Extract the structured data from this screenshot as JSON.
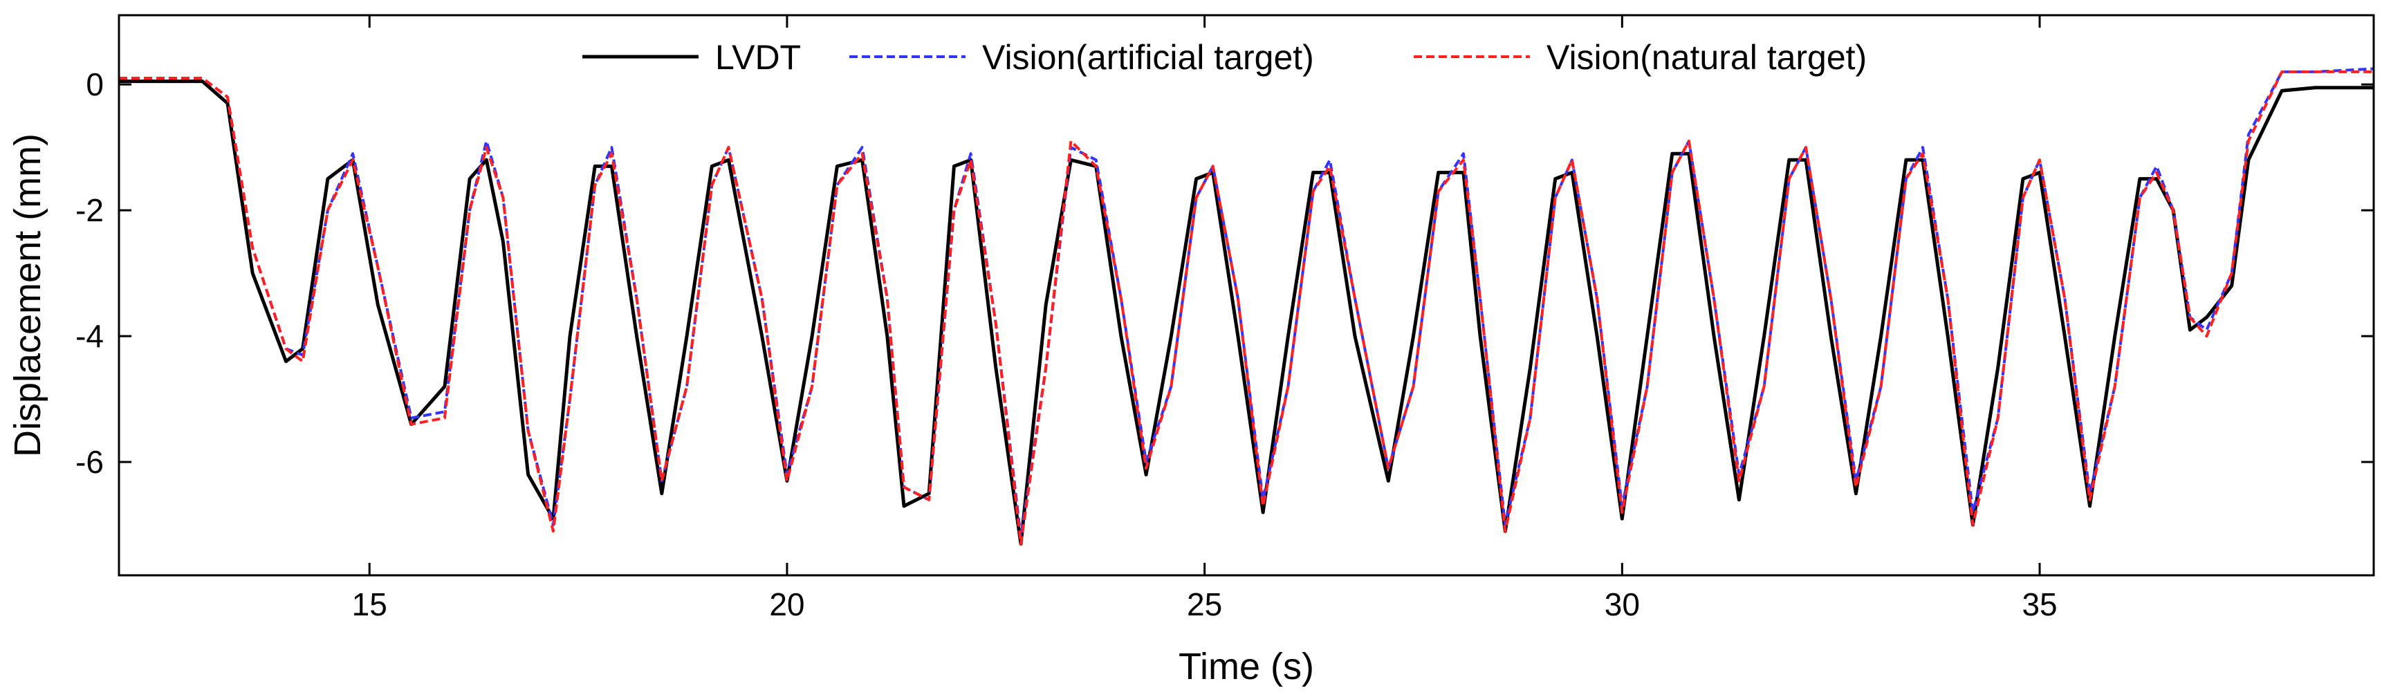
{
  "chart_data": {
    "type": "line",
    "xlabel": "Time (s)",
    "ylabel": "Displacement (mm)",
    "xlim": [
      12,
      39
    ],
    "ylim": [
      -7.8,
      1.1
    ],
    "xticks": [
      15,
      20,
      25,
      30,
      35
    ],
    "yticks": [
      0,
      -2,
      -4,
      -6
    ],
    "grid": false,
    "legend_position": "top",
    "series": [
      {
        "name": "LVDT",
        "color": "#000000",
        "style": "solid",
        "x": [
          12.0,
          13.0,
          13.3,
          13.6,
          14.0,
          14.2,
          14.5,
          14.8,
          15.1,
          15.5,
          15.9,
          16.2,
          16.4,
          16.6,
          16.9,
          17.2,
          17.4,
          17.7,
          17.9,
          18.2,
          18.5,
          18.8,
          19.1,
          19.3,
          19.7,
          20.0,
          20.3,
          20.6,
          20.9,
          21.2,
          21.4,
          21.7,
          22.0,
          22.2,
          22.5,
          22.8,
          23.1,
          23.4,
          23.7,
          24.0,
          24.3,
          24.6,
          24.9,
          25.1,
          25.4,
          25.7,
          26.0,
          26.3,
          26.5,
          26.8,
          27.2,
          27.5,
          27.8,
          28.1,
          28.3,
          28.6,
          28.9,
          29.2,
          29.4,
          29.7,
          30.0,
          30.3,
          30.6,
          30.8,
          31.1,
          31.4,
          31.7,
          32.0,
          32.2,
          32.5,
          32.8,
          33.1,
          33.4,
          33.6,
          33.9,
          34.2,
          34.5,
          34.8,
          35.0,
          35.3,
          35.6,
          35.9,
          36.2,
          36.4,
          36.6,
          36.8,
          37.0,
          37.3,
          37.5,
          37.9,
          38.3,
          39.0
        ],
        "y": [
          0.05,
          0.05,
          -0.3,
          -3.0,
          -4.4,
          -4.2,
          -1.5,
          -1.2,
          -3.5,
          -5.4,
          -4.8,
          -1.5,
          -1.2,
          -2.5,
          -6.2,
          -6.9,
          -4.0,
          -1.3,
          -1.3,
          -4.0,
          -6.5,
          -4.0,
          -1.3,
          -1.2,
          -4.0,
          -6.3,
          -4.0,
          -1.3,
          -1.2,
          -4.0,
          -6.7,
          -6.5,
          -1.3,
          -1.2,
          -4.5,
          -7.3,
          -3.5,
          -1.2,
          -1.3,
          -4.0,
          -6.2,
          -4.0,
          -1.5,
          -1.4,
          -4.0,
          -6.8,
          -4.0,
          -1.4,
          -1.4,
          -4.0,
          -6.3,
          -4.0,
          -1.4,
          -1.4,
          -4.0,
          -7.1,
          -4.5,
          -1.5,
          -1.4,
          -4.0,
          -6.9,
          -4.0,
          -1.1,
          -1.1,
          -4.0,
          -6.6,
          -4.0,
          -1.2,
          -1.2,
          -4.0,
          -6.5,
          -4.0,
          -1.2,
          -1.2,
          -4.0,
          -7.0,
          -4.5,
          -1.5,
          -1.4,
          -4.0,
          -6.7,
          -4.0,
          -1.5,
          -1.5,
          -2.0,
          -3.9,
          -3.7,
          -3.2,
          -1.2,
          -0.1,
          -0.05,
          -0.05
        ]
      },
      {
        "name": "Vision(artificial target)",
        "color": "#3333ff",
        "style": "dashed",
        "x": [
          12.0,
          13.0,
          13.3,
          13.6,
          14.0,
          14.2,
          14.5,
          14.8,
          15.1,
          15.5,
          15.9,
          16.2,
          16.4,
          16.6,
          16.9,
          17.2,
          17.4,
          17.7,
          17.9,
          18.2,
          18.5,
          18.8,
          19.1,
          19.3,
          19.7,
          20.0,
          20.3,
          20.6,
          20.9,
          21.2,
          21.4,
          21.7,
          22.0,
          22.2,
          22.5,
          22.8,
          23.1,
          23.4,
          23.7,
          24.0,
          24.3,
          24.6,
          24.9,
          25.1,
          25.4,
          25.7,
          26.0,
          26.3,
          26.5,
          26.8,
          27.2,
          27.5,
          27.8,
          28.1,
          28.3,
          28.6,
          28.9,
          29.2,
          29.4,
          29.7,
          30.0,
          30.3,
          30.6,
          30.8,
          31.1,
          31.4,
          31.7,
          32.0,
          32.2,
          32.5,
          32.8,
          33.1,
          33.4,
          33.6,
          33.9,
          34.2,
          34.5,
          34.8,
          35.0,
          35.3,
          35.6,
          35.9,
          36.2,
          36.4,
          36.6,
          36.8,
          37.0,
          37.3,
          37.5,
          37.9,
          38.3,
          39.0
        ],
        "y": [
          0.1,
          0.1,
          -0.2,
          -2.6,
          -4.2,
          -4.3,
          -2.0,
          -1.1,
          -2.9,
          -5.3,
          -5.2,
          -2.0,
          -0.9,
          -1.8,
          -5.5,
          -7.0,
          -5.0,
          -1.6,
          -1.0,
          -3.4,
          -6.3,
          -4.8,
          -1.6,
          -1.0,
          -3.4,
          -6.2,
          -4.8,
          -1.6,
          -1.0,
          -3.4,
          -6.4,
          -6.6,
          -2.0,
          -1.1,
          -3.8,
          -7.2,
          -4.5,
          -1.0,
          -1.2,
          -3.4,
          -6.0,
          -4.8,
          -1.8,
          -1.3,
          -3.4,
          -6.6,
          -4.8,
          -1.7,
          -1.2,
          -3.4,
          -6.1,
          -4.8,
          -1.7,
          -1.1,
          -3.4,
          -7.0,
          -5.3,
          -1.8,
          -1.2,
          -3.4,
          -6.7,
          -4.8,
          -1.4,
          -0.9,
          -3.4,
          -6.2,
          -4.8,
          -1.5,
          -1.0,
          -3.4,
          -6.3,
          -4.8,
          -1.5,
          -1.0,
          -3.4,
          -6.8,
          -5.3,
          -1.8,
          -1.2,
          -3.4,
          -6.5,
          -4.8,
          -1.8,
          -1.3,
          -2.0,
          -3.7,
          -3.9,
          -3.0,
          -0.8,
          0.2,
          0.2,
          0.25
        ]
      },
      {
        "name": "Vision(natural target)",
        "color": "#ff2020",
        "style": "dashed",
        "x": [
          12.0,
          13.0,
          13.3,
          13.6,
          14.0,
          14.2,
          14.5,
          14.8,
          15.1,
          15.5,
          15.9,
          16.2,
          16.4,
          16.6,
          16.9,
          17.2,
          17.4,
          17.7,
          17.9,
          18.2,
          18.5,
          18.8,
          19.1,
          19.3,
          19.7,
          20.0,
          20.3,
          20.6,
          20.9,
          21.2,
          21.4,
          21.7,
          22.0,
          22.2,
          22.5,
          22.8,
          23.1,
          23.4,
          23.7,
          24.0,
          24.3,
          24.6,
          24.9,
          25.1,
          25.4,
          25.7,
          26.0,
          26.3,
          26.5,
          26.8,
          27.2,
          27.5,
          27.8,
          28.1,
          28.3,
          28.6,
          28.9,
          29.2,
          29.4,
          29.7,
          30.0,
          30.3,
          30.6,
          30.8,
          31.1,
          31.4,
          31.7,
          32.0,
          32.2,
          32.5,
          32.8,
          33.1,
          33.4,
          33.6,
          33.9,
          34.2,
          34.5,
          34.8,
          35.0,
          35.3,
          35.6,
          35.9,
          36.2,
          36.4,
          36.6,
          36.8,
          37.0,
          37.3,
          37.5,
          37.9,
          38.3,
          39.0
        ],
        "y": [
          0.1,
          0.1,
          -0.2,
          -2.6,
          -4.2,
          -4.4,
          -2.0,
          -1.2,
          -2.9,
          -5.4,
          -5.3,
          -2.0,
          -1.0,
          -1.8,
          -5.5,
          -7.1,
          -5.0,
          -1.6,
          -1.1,
          -3.4,
          -6.3,
          -4.8,
          -1.6,
          -1.0,
          -3.4,
          -6.3,
          -4.8,
          -1.6,
          -1.1,
          -3.4,
          -6.4,
          -6.6,
          -2.0,
          -1.2,
          -3.8,
          -7.3,
          -4.5,
          -0.9,
          -1.3,
          -3.4,
          -6.1,
          -4.8,
          -1.8,
          -1.3,
          -3.4,
          -6.7,
          -4.8,
          -1.7,
          -1.3,
          -3.4,
          -6.1,
          -4.8,
          -1.7,
          -1.2,
          -3.4,
          -7.1,
          -5.3,
          -1.8,
          -1.2,
          -3.4,
          -6.8,
          -4.8,
          -1.4,
          -0.9,
          -3.4,
          -6.3,
          -4.8,
          -1.5,
          -1.0,
          -3.4,
          -6.4,
          -4.8,
          -1.5,
          -1.1,
          -3.4,
          -7.0,
          -5.3,
          -1.8,
          -1.2,
          -3.4,
          -6.6,
          -4.8,
          -1.8,
          -1.4,
          -2.0,
          -3.7,
          -4.0,
          -3.0,
          -0.9,
          0.2,
          0.2,
          0.2
        ]
      }
    ]
  }
}
